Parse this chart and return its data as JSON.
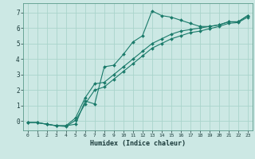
{
  "xlabel": "Humidex (Indice chaleur)",
  "bg_color": "#cce8e4",
  "grid_color": "#aad4cc",
  "line_color": "#1a7a6a",
  "xlim": [
    -0.5,
    23.5
  ],
  "ylim": [
    -0.6,
    7.6
  ],
  "xticks": [
    0,
    1,
    2,
    3,
    4,
    5,
    6,
    7,
    8,
    9,
    10,
    11,
    12,
    13,
    14,
    15,
    16,
    17,
    18,
    19,
    20,
    21,
    22,
    23
  ],
  "yticks": [
    0,
    1,
    2,
    3,
    4,
    5,
    6,
    7
  ],
  "line1_x": [
    0,
    1,
    2,
    3,
    4,
    5,
    6,
    7,
    8,
    9,
    10,
    11,
    12,
    13,
    14,
    15,
    16,
    17,
    18,
    19,
    20,
    21,
    22,
    23
  ],
  "line1_y": [
    -0.1,
    -0.1,
    -0.2,
    -0.3,
    -0.3,
    -0.2,
    1.3,
    1.1,
    3.5,
    3.6,
    4.3,
    5.1,
    5.5,
    7.1,
    6.8,
    6.7,
    6.5,
    6.3,
    6.1,
    6.1,
    6.2,
    6.4,
    6.4,
    6.8
  ],
  "line2_x": [
    0,
    1,
    2,
    3,
    4,
    5,
    6,
    7,
    8,
    9,
    10,
    11,
    12,
    13,
    14,
    15,
    16,
    17,
    18,
    19,
    20,
    21,
    22,
    23
  ],
  "line2_y": [
    -0.1,
    -0.1,
    -0.2,
    -0.3,
    -0.3,
    0.2,
    1.5,
    2.4,
    2.5,
    3.0,
    3.5,
    4.0,
    4.5,
    5.0,
    5.3,
    5.6,
    5.8,
    5.9,
    6.0,
    6.1,
    6.2,
    6.4,
    6.4,
    6.8
  ],
  "line3_x": [
    0,
    1,
    2,
    3,
    4,
    5,
    6,
    7,
    8,
    9,
    10,
    11,
    12,
    13,
    14,
    15,
    16,
    17,
    18,
    19,
    20,
    21,
    22,
    23
  ],
  "line3_y": [
    -0.1,
    -0.1,
    -0.2,
    -0.3,
    -0.35,
    0.05,
    1.1,
    2.0,
    2.2,
    2.7,
    3.2,
    3.7,
    4.2,
    4.7,
    5.0,
    5.3,
    5.5,
    5.7,
    5.8,
    5.95,
    6.1,
    6.3,
    6.35,
    6.7
  ]
}
